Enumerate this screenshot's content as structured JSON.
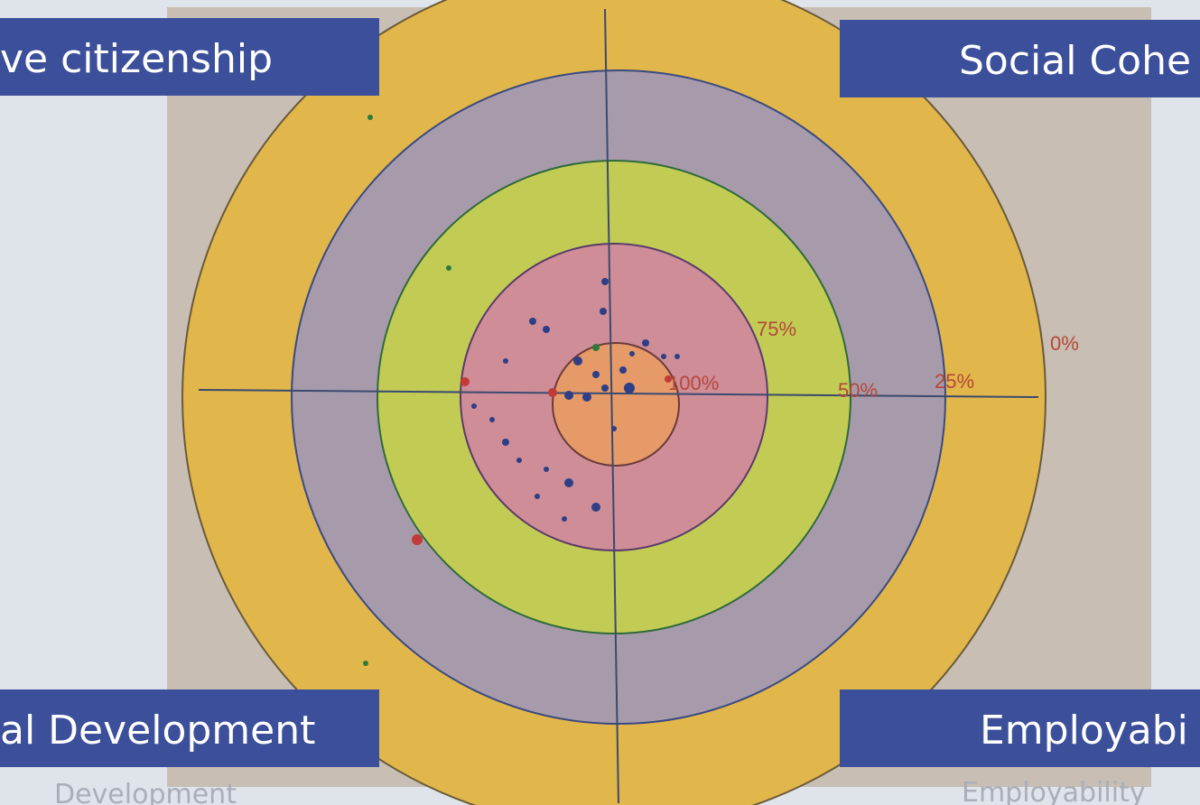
{
  "quadrant_labels": [
    "ve citizenship",
    "Social Cohe",
    "al Development",
    "Employabi"
  ],
  "ring_labels": [
    "75%",
    "100%",
    "50%",
    "25%",
    "0%"
  ],
  "background_texts": [
    "Development",
    "Employability"
  ]
}
